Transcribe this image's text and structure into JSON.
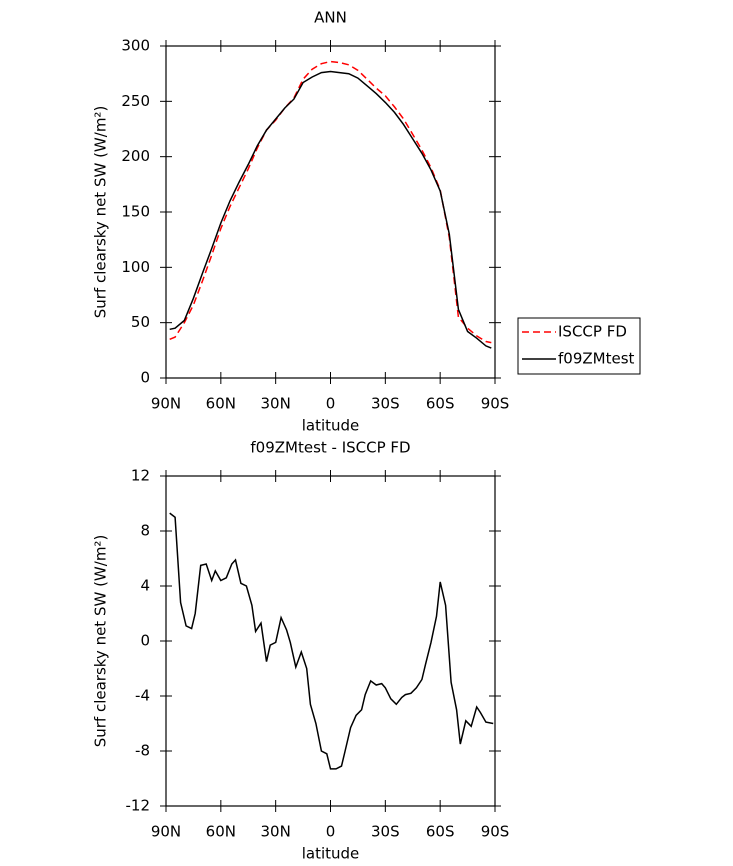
{
  "chart_data": [
    {
      "type": "line",
      "title": "ANN",
      "xlabel": "latitude",
      "ylabel": "Surf clearsky net SW (W/m²)",
      "x": [
        88,
        85,
        80,
        75,
        70,
        65,
        60,
        55,
        50,
        45,
        40,
        35,
        30,
        25,
        20,
        15,
        10,
        5,
        0,
        -5,
        -10,
        -15,
        -20,
        -25,
        -30,
        -35,
        -40,
        -45,
        -50,
        -55,
        -60,
        -65,
        -70,
        -75,
        -80,
        -85,
        -88
      ],
      "series": [
        {
          "name": "ISCCP FD",
          "color": "#ff0000",
          "dash": true,
          "values": [
            35,
            37,
            50,
            66,
            88,
            111,
            135,
            155,
            172,
            189,
            208,
            224,
            233,
            244,
            253,
            270,
            279,
            284,
            286,
            285,
            283,
            278,
            270,
            262,
            255,
            245,
            234,
            220,
            206,
            190,
            170,
            127,
            55,
            45,
            38,
            33,
            32
          ]
        },
        {
          "name": "f09ZMtest",
          "color": "#000000",
          "dash": false,
          "values": [
            44,
            45,
            52,
            72,
            95,
            117,
            140,
            160,
            177,
            193,
            210,
            224,
            234,
            244,
            252,
            267,
            272,
            276,
            277,
            276,
            275,
            271,
            264,
            257,
            249,
            240,
            229,
            216,
            203,
            188,
            169,
            130,
            62,
            42,
            36,
            29,
            27
          ]
        }
      ],
      "xlim": [
        90,
        -90
      ],
      "xticks": [
        {
          "value": 90,
          "label": "90N"
        },
        {
          "value": 60,
          "label": "60N"
        },
        {
          "value": 30,
          "label": "30N"
        },
        0,
        {
          "value": -30,
          "label": "30S"
        },
        {
          "value": -60,
          "label": "60S"
        },
        {
          "value": -90,
          "label": "90S"
        }
      ],
      "ylim": [
        0,
        300
      ],
      "yticks": [
        0,
        50,
        100,
        150,
        200,
        250,
        300
      ],
      "legend": "right"
    },
    {
      "type": "line",
      "title": "f09ZMtest - ISCCP FD",
      "xlabel": "latitude",
      "ylabel": "Surf clearsky net SW (W/m²)",
      "x": [
        88,
        85,
        82,
        79,
        76,
        74,
        71,
        68,
        65,
        63,
        60,
        57,
        54,
        52,
        49,
        46,
        43,
        41,
        38,
        35,
        33,
        30,
        27,
        24,
        22,
        19,
        16,
        13,
        11,
        8,
        5,
        2,
        0,
        -3,
        -6,
        -8,
        -11,
        -14,
        -17,
        -19,
        -22,
        -25,
        -28,
        -30,
        -33,
        -36,
        -39,
        -41,
        -44,
        -47,
        -50,
        -52,
        -55,
        -58,
        -60,
        -63,
        -66,
        -69,
        -71,
        -74,
        -77,
        -80,
        -82,
        -85,
        -89
      ],
      "values": [
        9.3,
        9.0,
        2.8,
        1.1,
        0.9,
        2.0,
        5.5,
        5.6,
        4.4,
        5.1,
        4.4,
        4.6,
        5.6,
        5.9,
        4.2,
        4.0,
        2.6,
        0.7,
        1.3,
        -1.5,
        -0.3,
        -0.1,
        1.7,
        0.8,
        -0.1,
        -1.9,
        -0.8,
        -2.0,
        -4.6,
        -6.0,
        -8.0,
        -8.2,
        -9.3,
        -9.3,
        -9.1,
        -8.0,
        -6.3,
        -5.4,
        -5.0,
        -3.9,
        -2.9,
        -3.2,
        -3.1,
        -3.4,
        -4.2,
        -4.6,
        -4.1,
        -3.9,
        -3.8,
        -3.4,
        -2.8,
        -1.7,
        -0.1,
        1.8,
        4.3,
        2.6,
        -3.0,
        -5.0,
        -7.5,
        -5.8,
        -6.2,
        -4.8,
        -5.2,
        -5.9,
        -6.0
      ],
      "color": "#000000",
      "xlim": [
        90,
        -90
      ],
      "xticks": [
        {
          "value": 90,
          "label": "90N"
        },
        {
          "value": 60,
          "label": "60N"
        },
        {
          "value": 30,
          "label": "30N"
        },
        0,
        {
          "value": -30,
          "label": "30S"
        },
        {
          "value": -60,
          "label": "60S"
        },
        {
          "value": -90,
          "label": "90S"
        }
      ],
      "ylim": [
        -12,
        12
      ],
      "yticks": [
        -12,
        -8,
        -4,
        0,
        4,
        8,
        12
      ]
    }
  ]
}
